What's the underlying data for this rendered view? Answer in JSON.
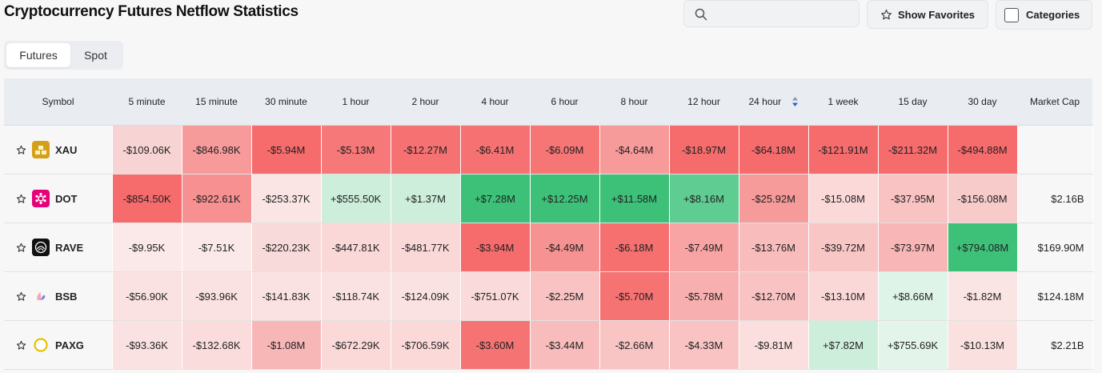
{
  "header": {
    "title": "Cryptocurrency Futures Netflow Statistics"
  },
  "search": {
    "placeholder": "",
    "icon": "search-icon"
  },
  "buttons": {
    "show_favorites": "Show Favorites",
    "categories": "Categories"
  },
  "tabs": [
    {
      "label": "Futures",
      "active": true
    },
    {
      "label": "Spot",
      "active": false
    }
  ],
  "table": {
    "symbol_header": "Symbol",
    "columns": [
      "5 minute",
      "15 minute",
      "30 minute",
      "1 hour",
      "2 hour",
      "4 hour",
      "6 hour",
      "8 hour",
      "12 hour",
      "24 hour",
      "1 week",
      "15 day",
      "30 day"
    ],
    "market_cap_header": "Market Cap",
    "sorted_column": "24 hour",
    "rows": [
      {
        "symbol": "XAU",
        "icon": "gold-bars-icon",
        "icon_color": "#d4a017",
        "values": [
          "-$109.06K",
          "-$846.98K",
          "-$5.94M",
          "-$5.13M",
          "-$12.27M",
          "-$6.41M",
          "-$6.09M",
          "-$4.64M",
          "-$18.97M",
          "-$64.18M",
          "-$121.91M",
          "-$211.32M",
          "-$494.88M"
        ],
        "colors": [
          "#f8d3d3",
          "#f79a9a",
          "#f66b6b",
          "#f67878",
          "#f67171",
          "#f67171",
          "#f67575",
          "#f79a9a",
          "#f66b6b",
          "#f66b6b",
          "#f66b6b",
          "#f66b6b",
          "#f66b6b"
        ],
        "market_cap": ""
      },
      {
        "symbol": "DOT",
        "icon": "polkadot-icon",
        "icon_color": "#e6007a",
        "values": [
          "-$854.50K",
          "-$922.61K",
          "-$253.37K",
          "+$555.50K",
          "+$1.37M",
          "+$7.28M",
          "+$12.25M",
          "+$11.58M",
          "+$8.16M",
          "-$25.92M",
          "-$15.08M",
          "-$37.95M",
          "-$156.08M"
        ],
        "colors": [
          "#f66b6b",
          "#f79090",
          "#fbe4e4",
          "#cdeedb",
          "#cdeedb",
          "#3dc179",
          "#3dc179",
          "#3dc179",
          "#5fcd91",
          "#f79a9a",
          "#fbd9d9",
          "#f9c3c3",
          "#f8cbcb"
        ],
        "market_cap": "$2.16B"
      },
      {
        "symbol": "RAVE",
        "icon": "rave-logo-icon",
        "icon_color": "#111111",
        "values": [
          "-$9.95K",
          "-$7.51K",
          "-$220.23K",
          "-$447.81K",
          "-$481.77K",
          "-$3.94M",
          "-$4.49M",
          "-$6.18M",
          "-$7.49M",
          "-$13.76M",
          "-$39.72M",
          "-$73.97M",
          "+$794.08M"
        ],
        "colors": [
          "#fbe9e9",
          "#fbe9e9",
          "#f9dada",
          "#fad8d8",
          "#fad8d8",
          "#f66b6b",
          "#f79292",
          "#f67070",
          "#f8a4a4",
          "#f8bcbc",
          "#f9c6c6",
          "#f9b6b6",
          "#3dc179"
        ],
        "market_cap": "$169.90M"
      },
      {
        "symbol": "BSB",
        "icon": "bsb-logo-icon",
        "icon_color": "#e88aa0",
        "values": [
          "-$56.90K",
          "-$93.96K",
          "-$141.83K",
          "-$118.74K",
          "-$124.09K",
          "-$751.07K",
          "-$2.25M",
          "-$5.70M",
          "-$5.78M",
          "-$12.70M",
          "-$13.10M",
          "+$8.66M",
          "-$1.82M"
        ],
        "colors": [
          "#fbe2e2",
          "#fbe2e2",
          "#fbe2e2",
          "#fbe2e2",
          "#fbe2e2",
          "#fadada",
          "#f9c3c3",
          "#f67373",
          "#f8afaf",
          "#f9c3c3",
          "#fad8d8",
          "#dff4e8",
          "#fbe4e4"
        ],
        "market_cap": "$124.18M"
      },
      {
        "symbol": "PAXG",
        "icon": "paxg-coin-icon",
        "icon_color": "#e6c200",
        "values": [
          "-$93.36K",
          "-$132.68K",
          "-$1.08M",
          "-$672.29K",
          "-$706.59K",
          "-$3.60M",
          "-$3.44M",
          "-$2.66M",
          "-$4.33M",
          "-$9.81M",
          "+$7.82M",
          "+$755.69K",
          "-$10.13M"
        ],
        "colors": [
          "#fbe2e2",
          "#fbdcdc",
          "#f8b7b7",
          "#fbd9d9",
          "#fbd9d9",
          "#f67373",
          "#f9bcbc",
          "#f9c4c4",
          "#f9c3c3",
          "#fbdede",
          "#cdeedb",
          "#e3f5ea",
          "#fbe0e0"
        ],
        "market_cap": "$2.21B"
      }
    ]
  }
}
